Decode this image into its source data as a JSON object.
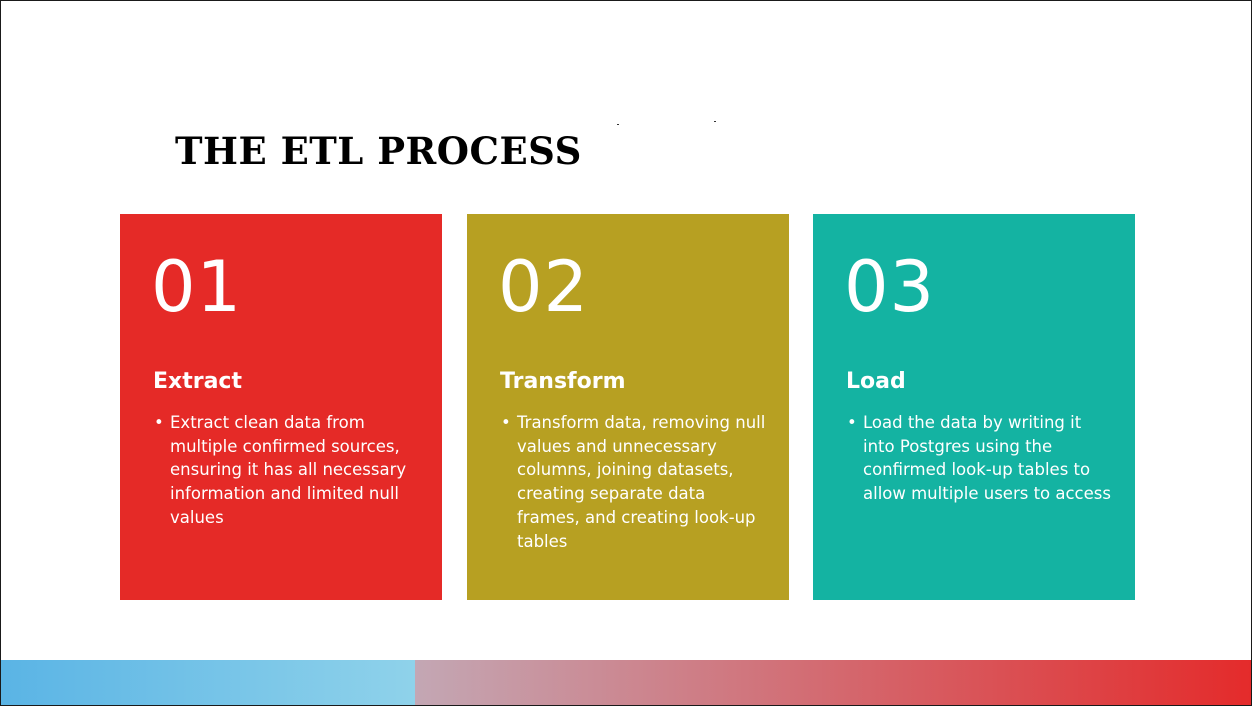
{
  "slide": {
    "title": "THE ETL PROCESS"
  },
  "cards": [
    {
      "number": "01",
      "title": "Extract",
      "bullet": "Extract clean data from multiple confirmed sources, ensuring it has all necessary information and limited null values",
      "color": "#e52a27"
    },
    {
      "number": "02",
      "title": "Transform",
      "bullet": "Transform data, removing null values and unnecessary columns, joining datasets, creating separate data frames, and creating look-up tables",
      "color": "#b7a022"
    },
    {
      "number": "03",
      "title": "Load",
      "bullet": "Load the data by writing it into Postgres using the confirmed look-up tables to allow multiple users to access",
      "color": "#14b3a2"
    }
  ],
  "colors": {
    "bar_left_start": "#5ab4e5",
    "bar_left_end": "#8fd2ea",
    "bar_right_start": "#c3a7b4",
    "bar_right_end": "#e42b2b"
  }
}
